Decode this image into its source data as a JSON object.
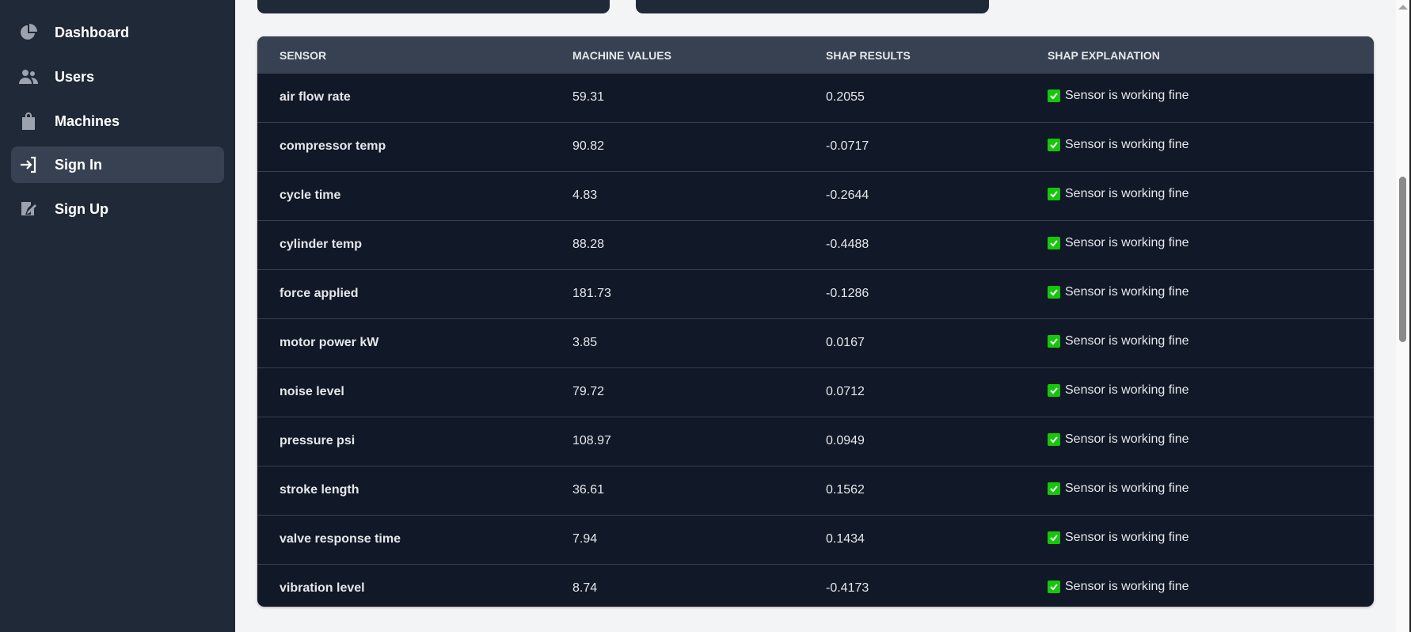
{
  "sidebar": {
    "items": [
      {
        "label": "Dashboard",
        "icon": "chart-pie-icon",
        "active": false
      },
      {
        "label": "Users",
        "icon": "users-icon",
        "active": false
      },
      {
        "label": "Machines",
        "icon": "shopping-bag-icon",
        "active": false
      },
      {
        "label": "Sign In",
        "icon": "sign-in-icon",
        "active": true
      },
      {
        "label": "Sign Up",
        "icon": "signature-icon",
        "active": false
      }
    ]
  },
  "table": {
    "headers": [
      "SENSOR",
      "MACHINE VALUES",
      "SHAP RESULTS",
      "SHAP EXPLANATION"
    ],
    "rows": [
      {
        "sensor": "air flow rate",
        "value": "59.31",
        "shap": "0.2055",
        "explanation": "Sensor is working fine"
      },
      {
        "sensor": "compressor temp",
        "value": "90.82",
        "shap": "-0.0717",
        "explanation": "Sensor is working fine"
      },
      {
        "sensor": "cycle time",
        "value": "4.83",
        "shap": "-0.2644",
        "explanation": "Sensor is working fine"
      },
      {
        "sensor": "cylinder temp",
        "value": "88.28",
        "shap": "-0.4488",
        "explanation": "Sensor is working fine"
      },
      {
        "sensor": "force applied",
        "value": "181.73",
        "shap": "-0.1286",
        "explanation": "Sensor is working fine"
      },
      {
        "sensor": "motor power kW",
        "value": "3.85",
        "shap": "0.0167",
        "explanation": "Sensor is working fine"
      },
      {
        "sensor": "noise level",
        "value": "79.72",
        "shap": "0.0712",
        "explanation": "Sensor is working fine"
      },
      {
        "sensor": "pressure psi",
        "value": "108.97",
        "shap": "0.0949",
        "explanation": "Sensor is working fine"
      },
      {
        "sensor": "stroke length",
        "value": "36.61",
        "shap": "0.1562",
        "explanation": "Sensor is working fine"
      },
      {
        "sensor": "valve response time",
        "value": "7.94",
        "shap": "0.1434",
        "explanation": "Sensor is working fine"
      },
      {
        "sensor": "vibration level",
        "value": "8.74",
        "shap": "-0.4173",
        "explanation": "Sensor is working fine"
      }
    ]
  },
  "colors": {
    "sidebar": "#1f2937",
    "table_body": "#111827",
    "table_header": "#374151",
    "check": "#16c60c"
  }
}
